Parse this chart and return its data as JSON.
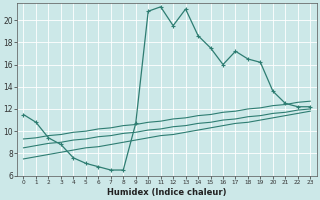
{
  "xlabel": "Humidex (Indice chaleur)",
  "bg_color": "#cce8e8",
  "line_color": "#2e7d72",
  "grid_color": "#ffffff",
  "xlim": [
    -0.5,
    23.5
  ],
  "ylim": [
    6,
    21.5
  ],
  "yticks": [
    6,
    8,
    10,
    12,
    14,
    16,
    18,
    20
  ],
  "xticks": [
    0,
    1,
    2,
    3,
    4,
    5,
    6,
    7,
    8,
    9,
    10,
    11,
    12,
    13,
    14,
    15,
    16,
    17,
    18,
    19,
    20,
    21,
    22,
    23
  ],
  "line1_x": [
    0,
    1,
    2,
    3,
    4,
    5,
    6,
    7,
    8,
    9,
    10,
    11,
    12,
    13,
    14,
    15,
    16,
    17,
    18,
    19,
    20,
    21,
    22,
    23
  ],
  "line1_y": [
    11.5,
    10.8,
    9.4,
    8.8,
    7.6,
    7.1,
    6.8,
    6.5,
    6.5,
    10.7,
    20.8,
    21.2,
    19.5,
    21.0,
    18.6,
    17.5,
    16.0,
    17.2,
    16.5,
    16.2,
    13.6,
    12.5,
    12.2,
    12.2
  ],
  "line2_x": [
    0,
    1,
    2,
    3,
    4,
    5,
    6,
    7,
    8,
    9,
    10,
    11,
    12,
    13,
    14,
    15,
    16,
    17,
    18,
    19,
    20,
    21,
    22,
    23
  ],
  "line2_y": [
    9.3,
    9.4,
    9.6,
    9.7,
    9.9,
    10.0,
    10.2,
    10.3,
    10.5,
    10.6,
    10.8,
    10.9,
    11.1,
    11.2,
    11.4,
    11.5,
    11.7,
    11.8,
    12.0,
    12.1,
    12.3,
    12.4,
    12.6,
    12.7
  ],
  "line3_x": [
    0,
    1,
    2,
    3,
    4,
    5,
    6,
    7,
    8,
    9,
    10,
    11,
    12,
    13,
    14,
    15,
    16,
    17,
    18,
    19,
    20,
    21,
    22,
    23
  ],
  "line3_y": [
    8.5,
    8.7,
    8.9,
    9.0,
    9.2,
    9.3,
    9.5,
    9.6,
    9.8,
    9.9,
    10.1,
    10.2,
    10.4,
    10.5,
    10.7,
    10.8,
    11.0,
    11.1,
    11.3,
    11.4,
    11.6,
    11.7,
    11.9,
    12.0
  ],
  "line4_x": [
    0,
    1,
    2,
    3,
    4,
    5,
    6,
    7,
    8,
    9,
    10,
    11,
    12,
    13,
    14,
    15,
    16,
    17,
    18,
    19,
    20,
    21,
    22,
    23
  ],
  "line4_y": [
    7.5,
    7.7,
    7.9,
    8.1,
    8.3,
    8.5,
    8.6,
    8.8,
    9.0,
    9.2,
    9.4,
    9.6,
    9.7,
    9.9,
    10.1,
    10.3,
    10.5,
    10.7,
    10.8,
    11.0,
    11.2,
    11.4,
    11.6,
    11.8
  ]
}
